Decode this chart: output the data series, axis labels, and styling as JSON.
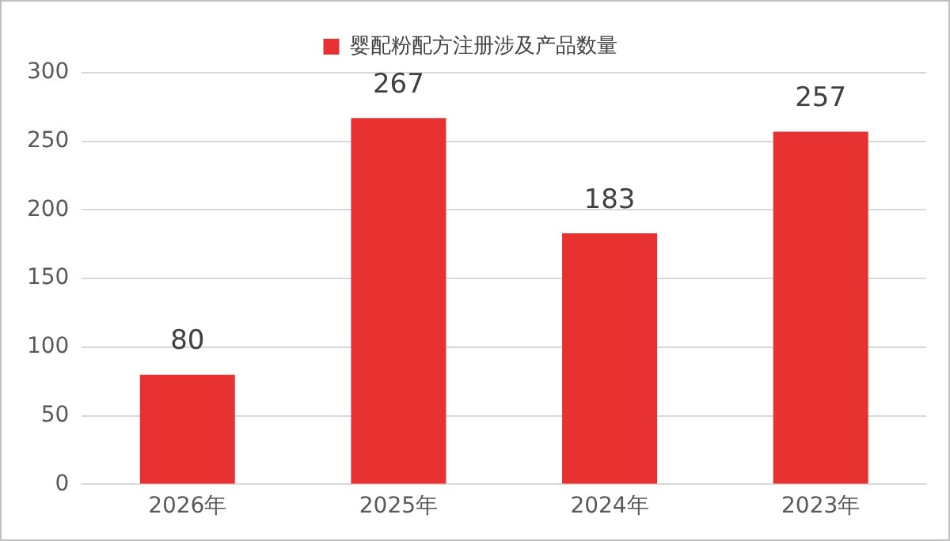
{
  "chart_data": {
    "type": "bar",
    "categories": [
      "2026年",
      "2025年",
      "2024年",
      "2023年"
    ],
    "series": [
      {
        "name": "婴配粉配方注册涉及产品数量",
        "color": "#e83232",
        "values": [
          80,
          267,
          183,
          257
        ]
      }
    ],
    "ylim": [
      0,
      300
    ],
    "yticks": [
      0,
      50,
      100,
      150,
      200,
      250,
      300
    ],
    "grid": "y",
    "legend": "top",
    "data_labels": true
  }
}
